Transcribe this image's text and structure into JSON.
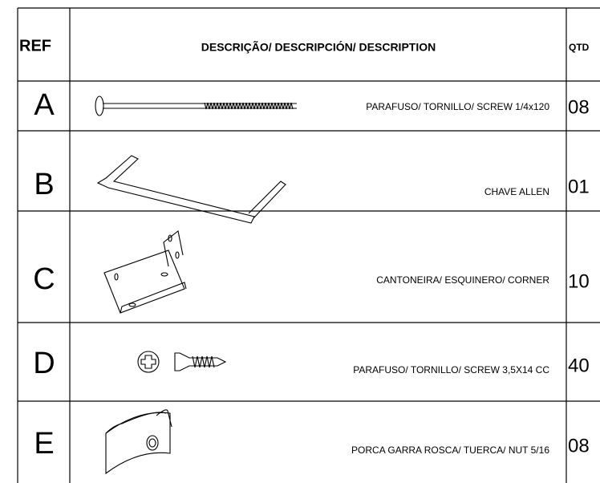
{
  "header": {
    "ref": "REF",
    "description": "DESCRIÇÃO/ DESCRIPCIÓN/ DESCRIPTION",
    "quantity": "QTD"
  },
  "rows": [
    {
      "ref": "A",
      "description": "PARAFUSO/ TORNILLO/ SCREW 1/4x120",
      "quantity": "08"
    },
    {
      "ref": "B",
      "description": "CHAVE ALLEN",
      "quantity": "01"
    },
    {
      "ref": "C",
      "description": "CANTONEIRA/ ESQUINERO/ CORNER",
      "quantity": "10"
    },
    {
      "ref": "D",
      "description": "PARAFUSO/ TORNILLO/ SCREW 3,5X14 CC",
      "quantity": "40"
    },
    {
      "ref": "E",
      "description": "PORCA GARRA ROSCA/ TUERCA/ NUT 5/16",
      "quantity": "08"
    }
  ]
}
